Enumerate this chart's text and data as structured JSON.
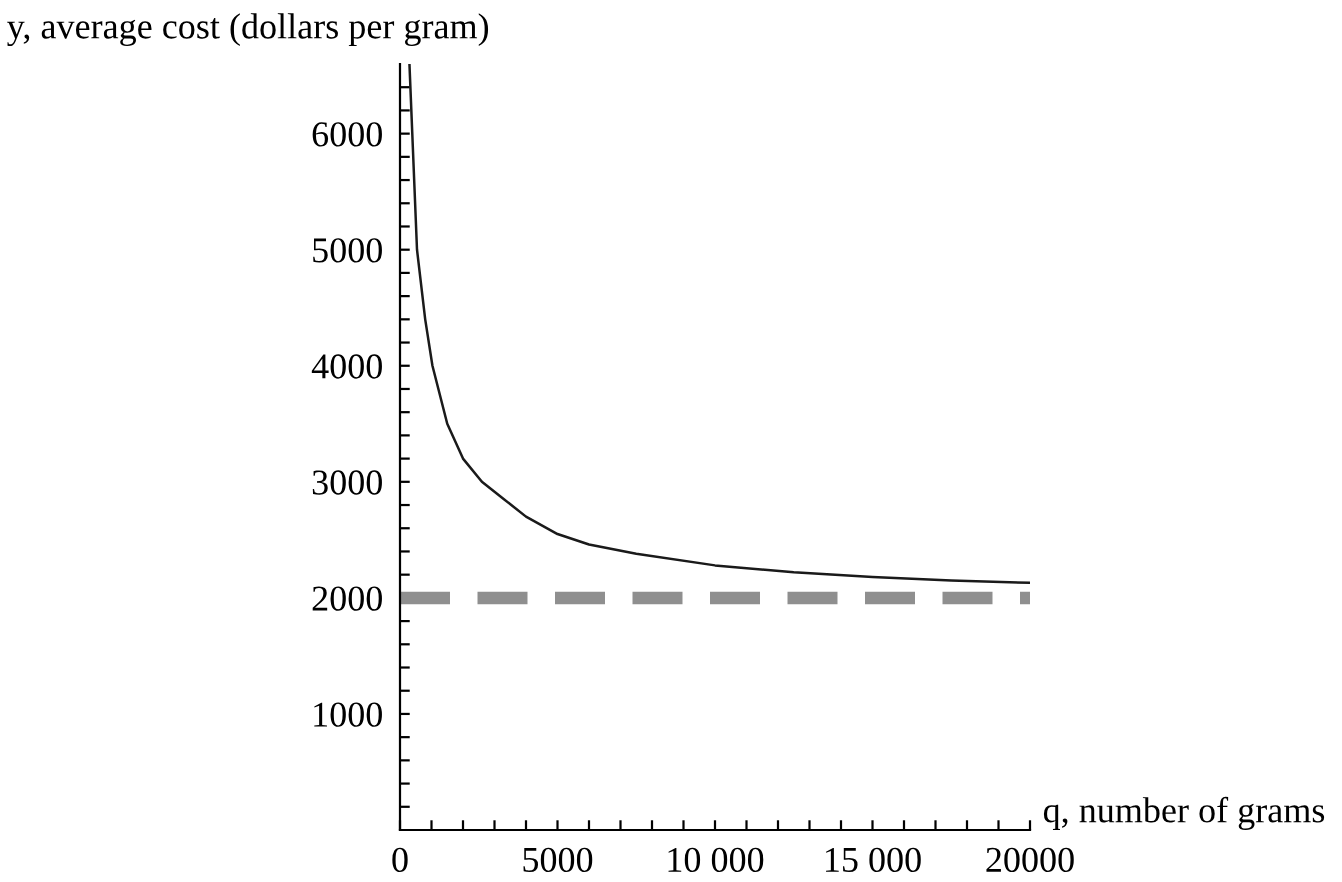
{
  "chart_data": {
    "type": "line",
    "xlabel": "q, number of grams",
    "ylabel": "y, average cost (dollars per gram)",
    "x": [
      300,
      540,
      800,
      1030,
      1500,
      2000,
      2600,
      3300,
      4000,
      5000,
      6000,
      7500,
      10000,
      12500,
      15000,
      17500,
      20000
    ],
    "series": [
      {
        "color": "#1a1a1a",
        "values": [
          6600,
          5000,
          4400,
          4000,
          3500,
          3200,
          3000,
          2850,
          2700,
          2550,
          2460,
          2380,
          2280,
          2220,
          2180,
          2150,
          2130
        ]
      }
    ],
    "xlim": [
      0,
      20000
    ],
    "ylim": [
      0,
      6600
    ],
    "xticks": [
      0,
      {
        "value": 1000,
        "label": null
      },
      {
        "value": 2000,
        "label": null
      },
      {
        "value": 3000,
        "label": null
      },
      {
        "value": 4000,
        "label": null
      },
      5000,
      {
        "value": 6000,
        "label": null
      },
      {
        "value": 7000,
        "label": null
      },
      {
        "value": 8000,
        "label": null
      },
      {
        "value": 9000,
        "label": null
      },
      {
        "value": 10000,
        "label": "10 000"
      },
      {
        "value": 11000,
        "label": null
      },
      {
        "value": 12000,
        "label": null
      },
      {
        "value": 13000,
        "label": null
      },
      {
        "value": 14000,
        "label": null
      },
      {
        "value": 15000,
        "label": "15 000"
      },
      {
        "value": 16000,
        "label": null
      },
      {
        "value": 17000,
        "label": null
      },
      {
        "value": 18000,
        "label": null
      },
      {
        "value": 19000,
        "label": null
      },
      20000
    ],
    "yticks": [
      {
        "value": 200,
        "label": null
      },
      {
        "value": 400,
        "label": null
      },
      {
        "value": 600,
        "label": null
      },
      {
        "value": 800,
        "label": null
      },
      1000,
      {
        "value": 1200,
        "label": null
      },
      {
        "value": 1400,
        "label": null
      },
      {
        "value": 1600,
        "label": null
      },
      {
        "value": 1800,
        "label": null
      },
      2000,
      {
        "value": 2200,
        "label": null
      },
      {
        "value": 2400,
        "label": null
      },
      {
        "value": 2600,
        "label": null
      },
      {
        "value": 2800,
        "label": null
      },
      3000,
      {
        "value": 3200,
        "label": null
      },
      {
        "value": 3400,
        "label": null
      },
      {
        "value": 3600,
        "label": null
      },
      {
        "value": 3800,
        "label": null
      },
      4000,
      {
        "value": 4200,
        "label": null
      },
      {
        "value": 4400,
        "label": null
      },
      {
        "value": 4600,
        "label": null
      },
      {
        "value": 4800,
        "label": null
      },
      5000,
      {
        "value": 5200,
        "label": null
      },
      {
        "value": 5400,
        "label": null
      },
      {
        "value": 5600,
        "label": null
      },
      {
        "value": 5800,
        "label": null
      },
      6000,
      {
        "value": 6200,
        "label": null
      },
      {
        "value": 6400,
        "label": null
      }
    ],
    "ref_lines": [
      {
        "axis": "y",
        "value": 2000,
        "color": "#8f8f8f",
        "line_style": "dashed"
      }
    ],
    "grid": false,
    "legend": false,
    "marker": "none",
    "line_style": "solid"
  }
}
